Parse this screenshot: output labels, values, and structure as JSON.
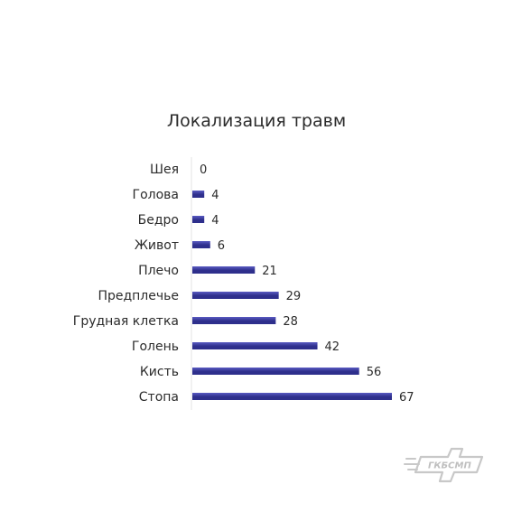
{
  "chart_data": {
    "type": "bar",
    "orientation": "horizontal",
    "title": "Локализация травм",
    "xlabel": "",
    "ylabel": "",
    "categories": [
      "Шея",
      "Голова",
      "Бедро",
      "Живот",
      "Плечо",
      "Предплечье",
      "Грудная клетка",
      "Голень",
      "Кисть",
      "Стопа"
    ],
    "values": [
      0,
      4,
      4,
      6,
      21,
      29,
      28,
      42,
      56,
      67
    ],
    "xlim": [
      0,
      67
    ],
    "data_labels": true,
    "grid": false,
    "legend": "none",
    "bar_color": "#2e2f8c",
    "bar_highlight_color": "#5a5bc2"
  },
  "logo": {
    "text": "ГКБСМП",
    "color": "#bfbfbf"
  }
}
